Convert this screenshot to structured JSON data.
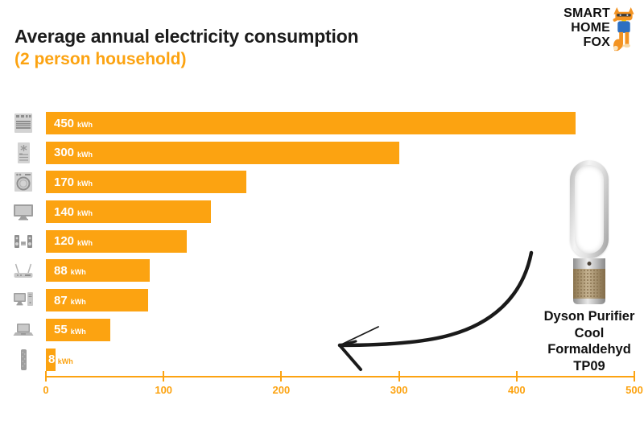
{
  "header": {
    "title": "Average annual electricity consumption",
    "subtitle": "(2 person household)"
  },
  "logo": {
    "line1": "SMART",
    "line2": "HOME",
    "line3": "FOX"
  },
  "chart_data": {
    "type": "bar",
    "orientation": "horizontal",
    "title": "Average annual electricity consumption (2 person household)",
    "unit": "kWh",
    "categories": [
      "oven-stove",
      "freezer",
      "washing-machine",
      "television",
      "stereo-system",
      "wifi-router",
      "desktop-computer",
      "laptop",
      "dyson-air-purifier"
    ],
    "values": [
      450,
      300,
      170,
      140,
      120,
      88,
      87,
      55,
      8
    ],
    "xlim": [
      0,
      500
    ],
    "x_ticks": [
      "0",
      "100",
      "200",
      "300",
      "400",
      "500"
    ],
    "bar_color": "#FCA311",
    "grid": false,
    "legend": "none"
  },
  "annotation": {
    "line1": "Dyson Purifier",
    "line2": "Cool",
    "line3": "Formaldehyd",
    "line4": "TP09"
  },
  "colors": {
    "accent": "#FCA311",
    "text": "#1A1A1A",
    "icon_gray": "#8E8E8E"
  }
}
